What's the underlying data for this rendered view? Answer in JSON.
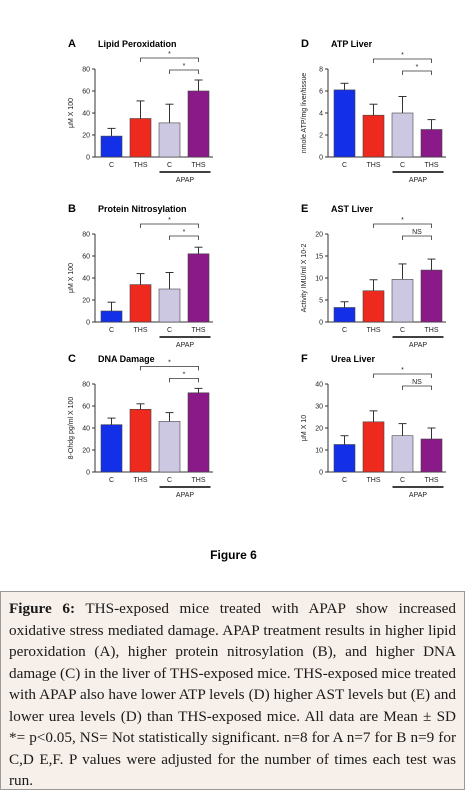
{
  "figure_label": "Figure 6",
  "caption": {
    "ref": "Figure 6:",
    "text": "THS-exposed mice treated with APAP show increased oxidative stress mediated damage. APAP treatment results in higher lipid peroxidation (A), higher protein nitrosylation (B), and higher DNA damage (C) in the liver of THS-exposed mice. THS-exposed mice treated with APAP also have lower ATP levels (D) higher AST levels but (E) and lower urea levels (D) than THS-exposed mice. All data are Mean ± SD *= p<0.05, NS= Not statistically significant. n=8 for A n=7 for B n=9 for C,D E,F. P values were adjusted for the number of times each test was run."
  },
  "colors": {
    "C": "#1330e8",
    "THS": "#ee2a1e",
    "C_APAP": "#ccc8e2",
    "THS_APAP": "#8a1a88"
  },
  "chart_data": [
    {
      "panel": "A",
      "title": "Lipid Peroxidation",
      "type": "bar",
      "ylabel": "μM X 100",
      "ylim": [
        0,
        80
      ],
      "yticks": [
        "0",
        "20",
        "40",
        "60",
        "80"
      ],
      "categories": [
        "C",
        "THS",
        "C",
        "THS"
      ],
      "group_label": "APAP",
      "values": [
        19,
        35,
        31,
        60
      ],
      "errors": [
        7,
        16,
        17,
        10
      ],
      "annotations": [
        {
          "from": 1,
          "to": 3,
          "label": "*"
        },
        {
          "from": 2,
          "to": 3,
          "label": "*"
        }
      ]
    },
    {
      "panel": "D",
      "title": "ATP Liver",
      "type": "bar",
      "ylabel": "nmole ATP/mg liver/tissue",
      "ylim": [
        0,
        8
      ],
      "yticks": [
        "0",
        "2",
        "4",
        "6",
        "8"
      ],
      "categories": [
        "C",
        "THS",
        "C",
        "THS"
      ],
      "group_label": "APAP",
      "values": [
        6.1,
        3.8,
        4.0,
        2.5
      ],
      "errors": [
        0.6,
        1.0,
        1.5,
        0.9
      ],
      "annotations": [
        {
          "from": 1,
          "to": 3,
          "label": "*"
        },
        {
          "from": 2,
          "to": 3,
          "label": "*"
        }
      ]
    },
    {
      "panel": "B",
      "title": "Protein Nitrosylation",
      "type": "bar",
      "ylabel": "μM X 100",
      "ylim": [
        0,
        80
      ],
      "yticks": [
        "0",
        "20",
        "40",
        "60",
        "80"
      ],
      "categories": [
        "C",
        "THS",
        "C",
        "THS"
      ],
      "group_label": "APAP",
      "values": [
        10,
        34,
        30,
        62
      ],
      "errors": [
        8,
        10,
        15,
        6
      ],
      "annotations": [
        {
          "from": 1,
          "to": 3,
          "label": "*"
        },
        {
          "from": 2,
          "to": 3,
          "label": "*"
        }
      ]
    },
    {
      "panel": "E",
      "title": "AST Liver",
      "type": "bar",
      "ylabel": "Activity IMU/ml X 10-2",
      "ylim": [
        0,
        20
      ],
      "yticks": [
        "0",
        "5",
        "10",
        "15",
        "20"
      ],
      "categories": [
        "C",
        "THS",
        "C",
        "THS"
      ],
      "group_label": "APAP",
      "values": [
        3.3,
        7.1,
        9.7,
        11.8
      ],
      "errors": [
        1.3,
        2.5,
        3.5,
        2.5
      ],
      "annotations": [
        {
          "from": 1,
          "to": 3,
          "label": "*"
        },
        {
          "from": 2,
          "to": 3,
          "label": "NS"
        }
      ]
    },
    {
      "panel": "C",
      "title": "DNA Damage",
      "type": "bar",
      "ylabel": "8-Ohdg pg/ml X 100",
      "ylim": [
        0,
        80
      ],
      "yticks": [
        "0",
        "20",
        "40",
        "60",
        "80"
      ],
      "categories": [
        "C",
        "THS",
        "C",
        "THS"
      ],
      "group_label": "APAP",
      "values": [
        43,
        57,
        46,
        72
      ],
      "errors": [
        6,
        5,
        8,
        4
      ],
      "annotations": [
        {
          "from": 1,
          "to": 3,
          "label": "*"
        },
        {
          "from": 2,
          "to": 3,
          "label": "*"
        }
      ]
    },
    {
      "panel": "F",
      "title": "Urea Liver",
      "type": "bar",
      "ylabel": "μM X 10",
      "ylim": [
        0,
        40
      ],
      "yticks": [
        "0",
        "10",
        "20",
        "30",
        "40"
      ],
      "categories": [
        "C",
        "THS",
        "C",
        "THS"
      ],
      "group_label": "APAP",
      "values": [
        12.5,
        22.8,
        16.5,
        15
      ],
      "errors": [
        4,
        5,
        5.5,
        5
      ],
      "annotations": [
        {
          "from": 1,
          "to": 3,
          "label": "*"
        },
        {
          "from": 2,
          "to": 3,
          "label": "NS"
        }
      ]
    }
  ]
}
